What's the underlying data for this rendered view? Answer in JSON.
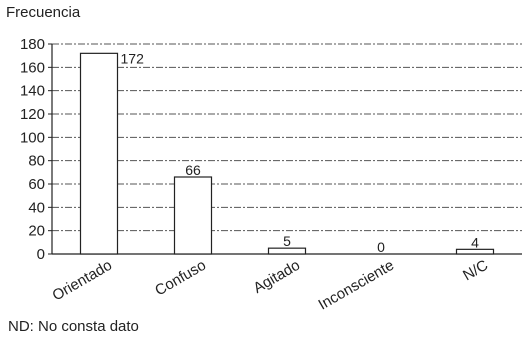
{
  "chart_data": {
    "type": "bar",
    "ylabel": "Frecuencia",
    "categories": [
      "Orientado",
      "Confuso",
      "Agitado",
      "Inconsciente",
      "N/C"
    ],
    "values": [
      172,
      66,
      5,
      0,
      4
    ],
    "data_labels": [
      "172",
      "66",
      "5",
      "0",
      "4"
    ],
    "ylim": [
      0,
      180
    ],
    "yticks": [
      0,
      20,
      40,
      60,
      80,
      100,
      120,
      140,
      160,
      180
    ],
    "grid": "horizontal dash-dot",
    "bar_color": "#ffffff",
    "bar_edge_color": "#222222",
    "footnote": "ND: No consta dato"
  }
}
